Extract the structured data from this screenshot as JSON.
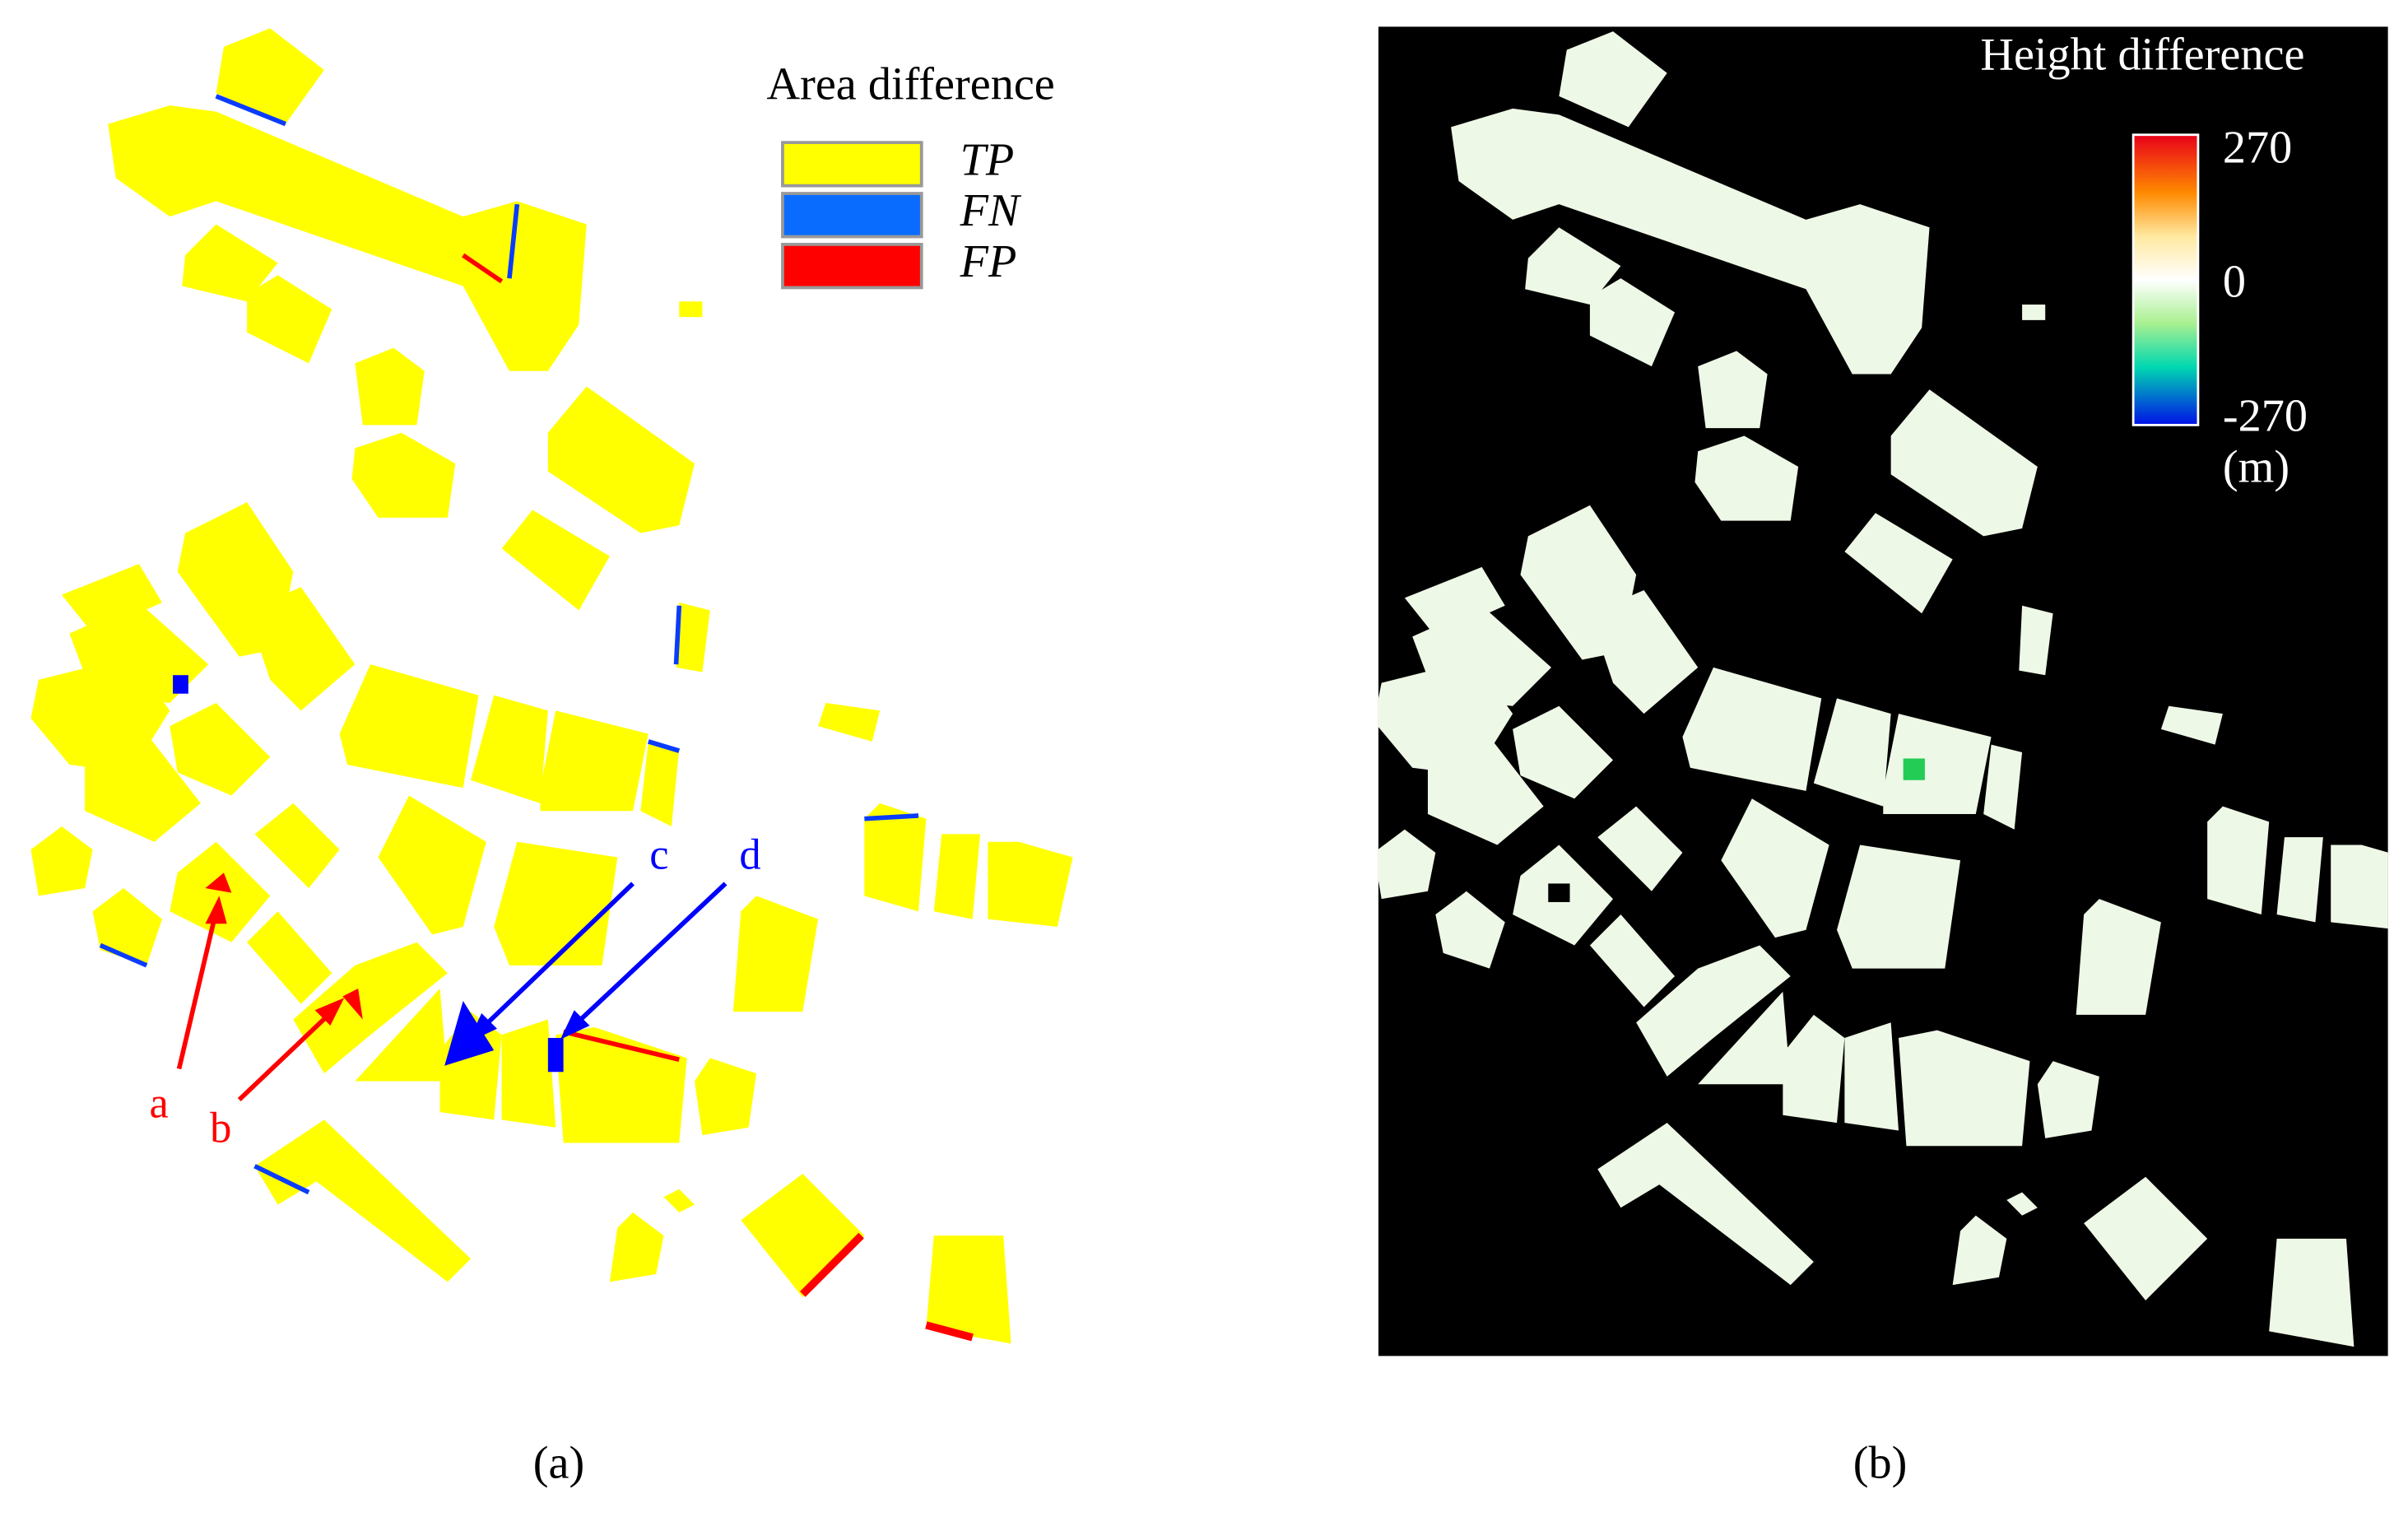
{
  "panel_a": {
    "legend": {
      "title": "Area difference",
      "items": [
        {
          "label": "TP",
          "color": "#ffff00"
        },
        {
          "label": "FN",
          "color": "#0a6cff"
        },
        {
          "label": "FP",
          "color": "#ff0000"
        }
      ]
    },
    "annotations": [
      "a",
      "b",
      "c",
      "d"
    ],
    "caption": "(a)"
  },
  "panel_b": {
    "legend": {
      "title": "Height difference",
      "ticks": [
        270,
        0,
        -270
      ],
      "unit": "(m)"
    },
    "caption": "(b)"
  }
}
